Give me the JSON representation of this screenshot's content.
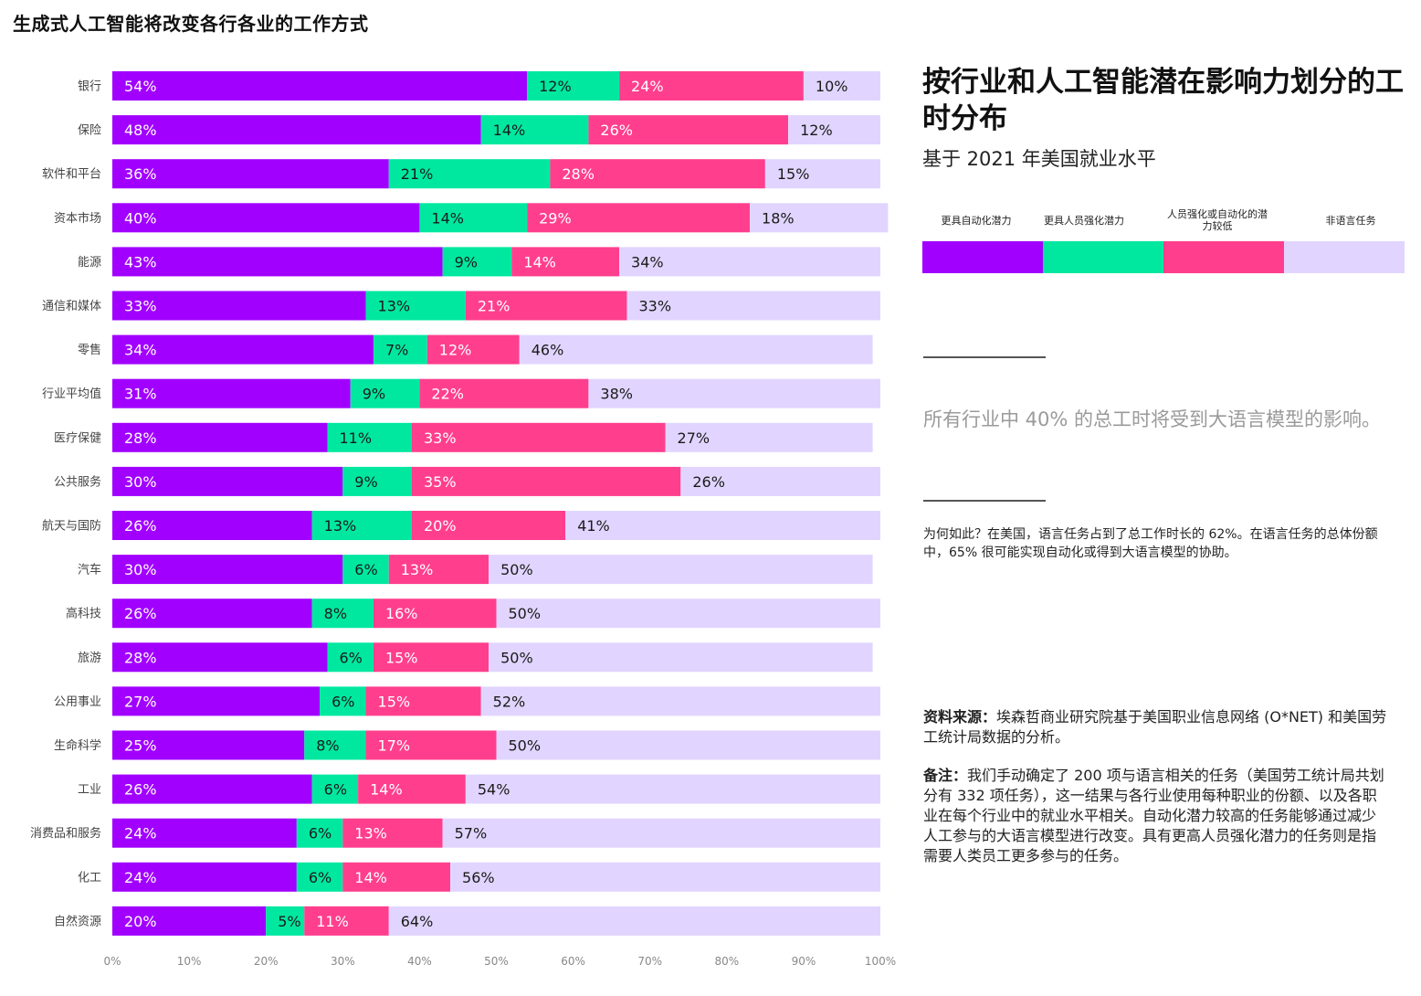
{
  "page_title": "生成式人工智能将改变各行各业的工作方式",
  "panel": {
    "title": "按行业和人工智能潜在影响力划分的工时分布",
    "subtitle": "基于 2021 年美国就业水平",
    "highlight": "所有行业中 40% 的总工时将受到大语言模型的影响。",
    "why": "为何如此？在美国，语言任务占到了总工作时长的 62%。在语言任务的总体份额中，65% 很可能实现自动化或得到大语言模型的协助。",
    "source_label": "资料来源：",
    "source_text": "埃森哲商业研究院基于美国职业信息网络 (O*NET) 和美国劳工统计局数据的分析。",
    "note_label": "备注：",
    "note_text": "我们手动确定了 200 项与语言相关的任务（美国劳工统计局共划分有 332 项任务），这一结果与各行业使用每种职业的份额、以及各职业在每个行业中的就业水平相关。自动化潜力较高的任务能够通过减少人工参与的大语言模型进行改变。具有更高人员强化潜力的任务则是指需要人类员工更多参与的任务。"
  },
  "legend": [
    {
      "label": "更具自动化潜力",
      "color": "#a100ff"
    },
    {
      "label": "更具人员强化潜力",
      "color": "#00e8a0"
    },
    {
      "label": "人员强化或自动化的潜力较低",
      "color": "#ff3f8e"
    },
    {
      "label": "非语言任务",
      "color": "#e1d5ff"
    }
  ],
  "chart_data": {
    "type": "bar",
    "orientation": "horizontal",
    "stacked": true,
    "categories": [
      "银行",
      "保险",
      "软件和平台",
      "资本市场",
      "能源",
      "通信和媒体",
      "零售",
      "行业平均值",
      "医疗保健",
      "公共服务",
      "航天与国防",
      "汽车",
      "高科技",
      "旅游",
      "公用事业",
      "生命科学",
      "工业",
      "消费品和服务",
      "化工",
      "自然资源"
    ],
    "series": [
      {
        "name": "更具自动化潜力",
        "color": "#a100ff",
        "values": [
          54,
          48,
          36,
          40,
          43,
          33,
          34,
          31,
          28,
          30,
          26,
          30,
          26,
          28,
          27,
          25,
          26,
          24,
          24,
          20
        ]
      },
      {
        "name": "更具人员强化潜力",
        "color": "#00e8a0",
        "values": [
          12,
          14,
          21,
          14,
          9,
          13,
          7,
          9,
          11,
          9,
          13,
          6,
          8,
          6,
          6,
          8,
          6,
          6,
          6,
          5
        ]
      },
      {
        "name": "人员强化或自动化的潜力较低",
        "color": "#ff3f8e",
        "values": [
          24,
          26,
          28,
          29,
          14,
          21,
          12,
          22,
          33,
          35,
          20,
          13,
          16,
          15,
          15,
          17,
          14,
          13,
          14,
          11
        ]
      },
      {
        "name": "非语言任务",
        "color": "#e1d5ff",
        "values": [
          10,
          12,
          15,
          18,
          34,
          33,
          46,
          38,
          27,
          26,
          41,
          50,
          50,
          50,
          52,
          50,
          54,
          57,
          56,
          64
        ]
      }
    ],
    "x_ticks": [
      "0%",
      "10%",
      "20%",
      "30%",
      "40%",
      "50%",
      "60%",
      "70%",
      "80%",
      "90%",
      "100%"
    ],
    "xlim": [
      0,
      100
    ],
    "unit": "%",
    "grid": false
  }
}
